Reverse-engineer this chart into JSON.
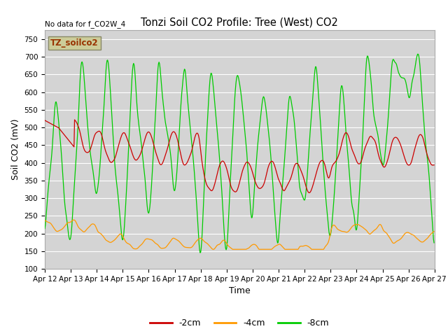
{
  "title": "Tonzi Soil CO2 Profile: Tree (West) CO2",
  "annotation": "No data for f_CO2W_4",
  "xlabel": "Time",
  "ylabel": "Soil CO2 (mV)",
  "ylim": [
    100,
    775
  ],
  "yticks": [
    100,
    150,
    200,
    250,
    300,
    350,
    400,
    450,
    500,
    550,
    600,
    650,
    700,
    750
  ],
  "legend_labels": [
    "-2cm",
    "-4cm",
    "-8cm"
  ],
  "legend_colors": [
    "#cc0000",
    "#ff9900",
    "#00cc00"
  ],
  "plot_bg_color": "#d4d4d4",
  "box_color": "#cccc99",
  "box_text": "TZ_soilco2",
  "n_days": 15,
  "xstart": 12,
  "xend": 27
}
